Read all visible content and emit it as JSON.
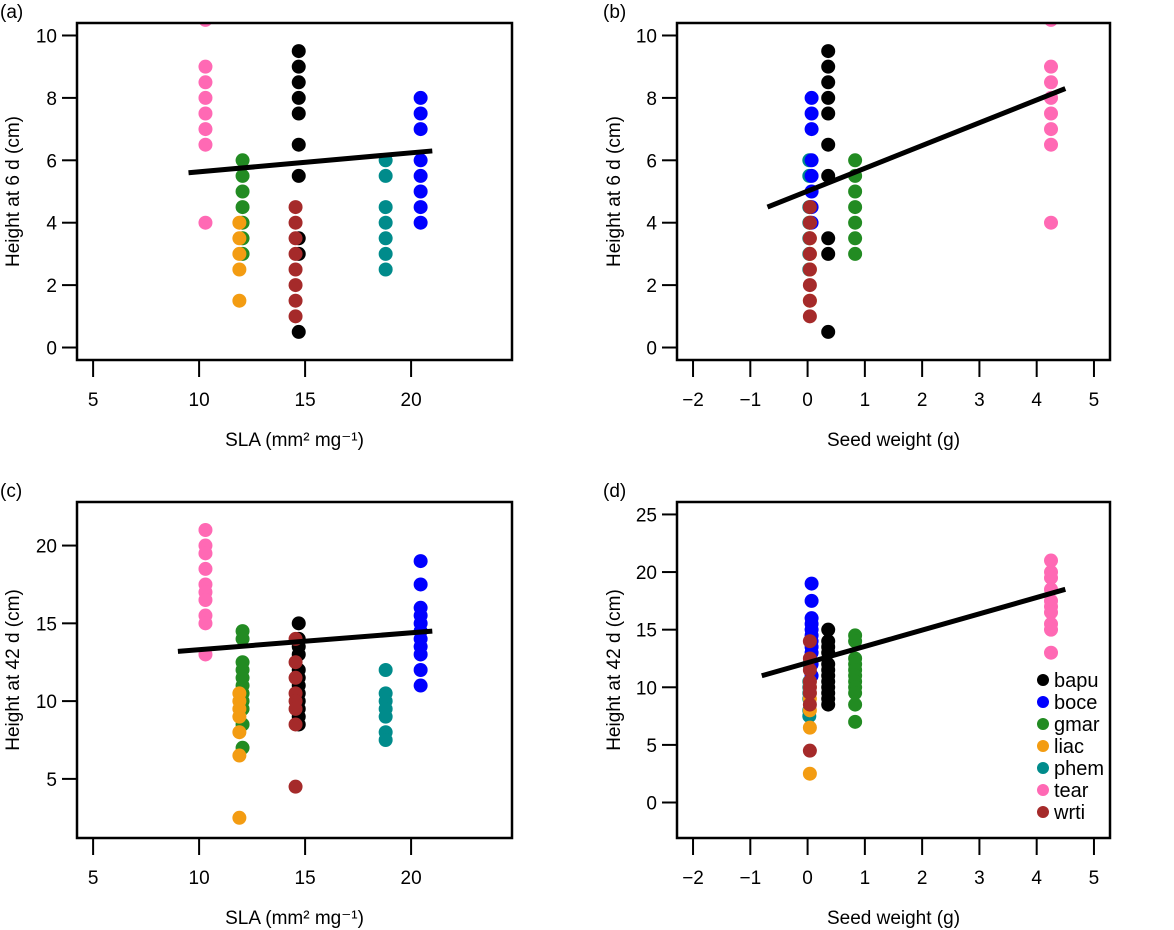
{
  "chart_data": [
    {
      "panel_label": "(a)",
      "type": "scatter",
      "xlabel": "SLA (mm² mg⁻¹)",
      "ylabel": "Height at 6 d (cm)",
      "xlim": [
        5,
        24
      ],
      "ylim": [
        0,
        10
      ],
      "xticks": [
        5,
        10,
        15,
        20
      ],
      "xtick_labels": [
        "5",
        "10",
        "15",
        "20"
      ],
      "yticks": [
        0,
        2,
        4,
        6,
        8,
        10
      ],
      "ytick_labels": [
        "0",
        "2",
        "4",
        "6",
        "8",
        "10"
      ],
      "grid": false,
      "fit_line": [
        [
          9.5,
          5.6
        ],
        [
          21,
          6.3
        ]
      ],
      "series": [
        {
          "name": "tear",
          "color": "#FF69B4",
          "x": 10.3,
          "y": [
            10.5,
            9,
            8.5,
            8,
            7.5,
            7,
            6.5,
            4
          ]
        },
        {
          "name": "gmar",
          "color": "#228B22",
          "x": 12.05,
          "y": [
            6,
            5.5,
            5,
            4.5,
            4,
            3.5,
            3
          ]
        },
        {
          "name": "liac",
          "color": "#F39C12",
          "x": 11.9,
          "y": [
            4,
            3.5,
            3,
            2.5,
            1.5
          ]
        },
        {
          "name": "bapu",
          "color": "#000000",
          "x": 14.7,
          "y": [
            9.5,
            9,
            8.5,
            8,
            7.5,
            6.5,
            5.5,
            3.5,
            3,
            0.5
          ]
        },
        {
          "name": "wrti",
          "color": "#A52A2A",
          "x": 14.55,
          "y": [
            4.5,
            4,
            3.5,
            3,
            2.5,
            2,
            1.5,
            1
          ]
        },
        {
          "name": "phem",
          "color": "#008B8B",
          "x": 18.8,
          "y": [
            6,
            5.5,
            4.5,
            4,
            3.5,
            3,
            2.5
          ]
        },
        {
          "name": "boce",
          "color": "#0000FF",
          "x": 20.45,
          "y": [
            8,
            7.5,
            7,
            6,
            5.5,
            5,
            4.5,
            4
          ]
        }
      ]
    },
    {
      "panel_label": "(b)",
      "type": "scatter",
      "xlabel": "Seed weight (g)",
      "ylabel": "Height at 6 d (cm)",
      "xlim": [
        -2,
        5
      ],
      "ylim": [
        0,
        10
      ],
      "xticks": [
        -2,
        -1,
        0,
        1,
        2,
        3,
        4,
        5
      ],
      "xtick_labels": [
        "−2",
        "−1",
        "0",
        "1",
        "2",
        "3",
        "4",
        "5"
      ],
      "yticks": [
        0,
        2,
        4,
        6,
        8,
        10
      ],
      "ytick_labels": [
        "0",
        "2",
        "4",
        "6",
        "8",
        "10"
      ],
      "grid": false,
      "fit_line": [
        [
          -0.7,
          4.5
        ],
        [
          4.5,
          8.3
        ]
      ],
      "series": [
        {
          "name": "phem",
          "color": "#008B8B",
          "x": 0.03,
          "y": [
            6,
            5.5,
            4.5,
            4,
            3.5,
            3,
            2.5
          ]
        },
        {
          "name": "boce",
          "color": "#0000FF",
          "x": 0.07,
          "y": [
            8,
            7.5,
            7,
            6,
            5.5,
            5,
            4.5,
            4
          ]
        },
        {
          "name": "liac",
          "color": "#F39C12",
          "x": 0.04,
          "y": [
            4,
            3.5,
            3,
            2.5,
            1.5
          ]
        },
        {
          "name": "wrti",
          "color": "#A52A2A",
          "x": 0.04,
          "y": [
            4.5,
            4,
            3.5,
            3,
            2.5,
            2,
            1.5,
            1
          ]
        },
        {
          "name": "bapu",
          "color": "#000000",
          "x": 0.36,
          "y": [
            9.5,
            9,
            8.5,
            8,
            7.5,
            6.5,
            5.5,
            3.5,
            3,
            0.5
          ]
        },
        {
          "name": "gmar",
          "color": "#228B22",
          "x": 0.83,
          "y": [
            6,
            5.5,
            5,
            4.5,
            4,
            3.5,
            3
          ]
        },
        {
          "name": "tear",
          "color": "#FF69B4",
          "x": 4.25,
          "y": [
            10.5,
            9,
            8.5,
            8,
            7.5,
            7,
            6.5,
            4
          ]
        }
      ]
    },
    {
      "panel_label": "(c)",
      "type": "scatter",
      "xlabel": "SLA (mm² mg⁻¹)",
      "ylabel": "Height at 42 d (cm)",
      "xlim": [
        5,
        24
      ],
      "ylim": [
        2,
        22
      ],
      "xticks": [
        5,
        10,
        15,
        20
      ],
      "xtick_labels": [
        "5",
        "10",
        "15",
        "20"
      ],
      "yticks": [
        5,
        10,
        15,
        20
      ],
      "ytick_labels": [
        "5",
        "10",
        "15",
        "20"
      ],
      "grid": false,
      "fit_line": [
        [
          9,
          13.2
        ],
        [
          21,
          14.5
        ]
      ],
      "series": [
        {
          "name": "tear",
          "color": "#FF69B4",
          "x": 10.3,
          "y": [
            21,
            20,
            19.5,
            18.5,
            17.5,
            17,
            16.5,
            15.5,
            15,
            13
          ]
        },
        {
          "name": "gmar",
          "color": "#228B22",
          "x": 12.05,
          "y": [
            14.5,
            14,
            12.5,
            12,
            11.5,
            11,
            10.5,
            10,
            9.5,
            8.5,
            7
          ]
        },
        {
          "name": "liac",
          "color": "#F39C12",
          "x": 11.9,
          "y": [
            10.5,
            10,
            9.5,
            9,
            8,
            6.5,
            2.5
          ]
        },
        {
          "name": "bapu",
          "color": "#000000",
          "x": 14.7,
          "y": [
            15,
            14,
            13.5,
            13,
            12,
            11.5,
            11,
            10.5,
            10,
            9.5,
            9,
            8.5
          ]
        },
        {
          "name": "wrti",
          "color": "#A52A2A",
          "x": 14.55,
          "y": [
            14,
            12.5,
            11.5,
            10.5,
            10,
            9.5,
            8.5,
            4.5
          ]
        },
        {
          "name": "phem",
          "color": "#008B8B",
          "x": 18.8,
          "y": [
            12,
            10.5,
            10,
            9.5,
            9,
            8,
            7.5
          ]
        },
        {
          "name": "boce",
          "color": "#0000FF",
          "x": 20.45,
          "y": [
            19,
            17.5,
            16,
            15.5,
            15,
            14.5,
            14,
            13.5,
            13,
            12,
            11
          ]
        }
      ]
    },
    {
      "panel_label": "(d)",
      "type": "scatter",
      "xlabel": "Seed weight (g)",
      "ylabel": "Height at 42 d (cm)",
      "xlim": [
        -2,
        5
      ],
      "ylim": [
        -2,
        25
      ],
      "xticks": [
        -2,
        -1,
        0,
        1,
        2,
        3,
        4,
        5
      ],
      "xtick_labels": [
        "−2",
        "−1",
        "0",
        "1",
        "2",
        "3",
        "4",
        "5"
      ],
      "yticks": [
        0,
        5,
        10,
        15,
        20,
        25
      ],
      "ytick_labels": [
        "0",
        "5",
        "10",
        "15",
        "20",
        "25"
      ],
      "grid": false,
      "fit_line": [
        [
          -0.8,
          11.0
        ],
        [
          4.5,
          18.5
        ]
      ],
      "legend_placement": "bottom-right",
      "legend": [
        {
          "name": "bapu",
          "color": "#000000"
        },
        {
          "name": "boce",
          "color": "#0000FF"
        },
        {
          "name": "gmar",
          "color": "#228B22"
        },
        {
          "name": "liac",
          "color": "#F39C12"
        },
        {
          "name": "phem",
          "color": "#008B8B"
        },
        {
          "name": "tear",
          "color": "#FF69B4"
        },
        {
          "name": "wrti",
          "color": "#A52A2A"
        }
      ],
      "series": [
        {
          "name": "phem",
          "color": "#008B8B",
          "x": 0.03,
          "y": [
            12,
            10.5,
            10,
            9.5,
            9,
            8,
            7.5
          ]
        },
        {
          "name": "boce",
          "color": "#0000FF",
          "x": 0.07,
          "y": [
            19,
            17.5,
            16,
            15.5,
            15,
            14.5,
            14,
            13.5,
            13,
            12,
            11
          ]
        },
        {
          "name": "liac",
          "color": "#F39C12",
          "x": 0.04,
          "y": [
            10.5,
            10,
            9.5,
            9,
            8,
            6.5,
            2.5
          ]
        },
        {
          "name": "wrti",
          "color": "#A52A2A",
          "x": 0.04,
          "y": [
            14,
            12.5,
            11.5,
            10.5,
            10,
            9.5,
            8.5,
            4.5
          ]
        },
        {
          "name": "bapu",
          "color": "#000000",
          "x": 0.36,
          "y": [
            15,
            14,
            13.5,
            13,
            12,
            11.5,
            11,
            10.5,
            10,
            9.5,
            9,
            8.5
          ]
        },
        {
          "name": "gmar",
          "color": "#228B22",
          "x": 0.83,
          "y": [
            14.5,
            14,
            12.5,
            12,
            11.5,
            11,
            10.5,
            10,
            9.5,
            8.5,
            7
          ]
        },
        {
          "name": "tear",
          "color": "#FF69B4",
          "x": 4.25,
          "y": [
            21,
            20,
            19.5,
            18.5,
            17.5,
            17,
            16.5,
            15.5,
            15,
            13
          ]
        }
      ]
    }
  ]
}
